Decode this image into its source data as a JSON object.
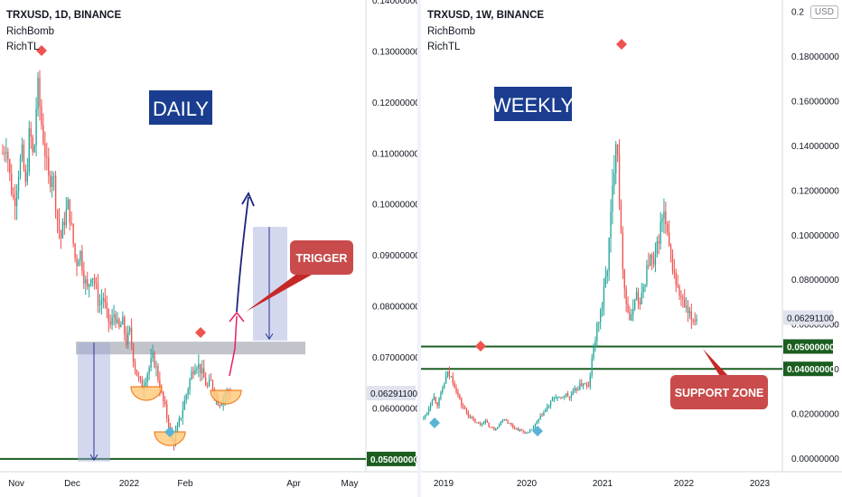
{
  "chart_data": [
    {
      "type": "candlestick",
      "title": "TRXUSD, 1D, BINANCE",
      "indicators": [
        "RichBomb",
        "RichTL"
      ],
      "banner": "DAILY",
      "x_ticks": [
        "Nov",
        "Dec",
        "2022",
        "Feb",
        "Apr",
        "May"
      ],
      "y_ticks": [
        "0.14000000",
        "0.13000000",
        "0.12000000",
        "0.11000000",
        "0.10000000",
        "0.09000000",
        "0.08000000",
        "0.07000000",
        "0.06000000",
        "0.05000000"
      ],
      "ylim": [
        0.0475,
        0.14
      ],
      "current_price": "0.06291100",
      "support_label": "0.05000000",
      "callout": "TRIGGER",
      "resistance_zone": [
        0.0705,
        0.073
      ],
      "support_level": 0.05,
      "close_path": [
        0.11,
        0.112,
        0.104,
        0.1,
        0.106,
        0.11,
        0.103,
        0.115,
        0.108,
        0.124,
        0.116,
        0.11,
        0.104,
        0.107,
        0.098,
        0.093,
        0.097,
        0.1,
        0.094,
        0.088,
        0.091,
        0.086,
        0.083,
        0.087,
        0.084,
        0.08,
        0.082,
        0.078,
        0.076,
        0.079,
        0.075,
        0.077,
        0.073,
        0.075,
        0.069,
        0.066,
        0.064,
        0.066,
        0.068,
        0.07,
        0.067,
        0.063,
        0.06,
        0.057,
        0.053,
        0.055,
        0.058,
        0.061,
        0.064,
        0.067,
        0.069,
        0.068,
        0.066,
        0.064,
        0.065,
        0.063,
        0.061,
        0.062,
        0.063,
        0.0629
      ]
    },
    {
      "type": "candlestick",
      "title": "TRXUSD, 1W, BINANCE",
      "indicators": [
        "RichBomb",
        "RichTL"
      ],
      "banner": "WEEKLY",
      "currency": "USD",
      "x_ticks": [
        "2019",
        "2020",
        "2021",
        "2022",
        "2023"
      ],
      "y_ticks": [
        "0.2",
        "0.18000000",
        "0.16000000",
        "0.14000000",
        "0.12000000",
        "0.10000000",
        "0.08000000",
        "0.06000000",
        "0.04000000",
        "0.02000000",
        "0.00000000"
      ],
      "ylim": [
        -0.006,
        0.205
      ],
      "current_price": "0.06291100",
      "support_labels": [
        "0.05000000",
        "0.04000000"
      ],
      "callout": "SUPPORT ZONE",
      "support_levels": [
        0.05,
        0.04
      ],
      "close_path": [
        0.018,
        0.022,
        0.028,
        0.024,
        0.031,
        0.038,
        0.036,
        0.03,
        0.024,
        0.021,
        0.018,
        0.016,
        0.015,
        0.017,
        0.014,
        0.013,
        0.015,
        0.018,
        0.016,
        0.014,
        0.013,
        0.012,
        0.011,
        0.013,
        0.016,
        0.019,
        0.022,
        0.025,
        0.028,
        0.026,
        0.029,
        0.027,
        0.03,
        0.032,
        0.034,
        0.031,
        0.048,
        0.06,
        0.07,
        0.085,
        0.115,
        0.15,
        0.095,
        0.07,
        0.06,
        0.075,
        0.068,
        0.08,
        0.09,
        0.085,
        0.1,
        0.11,
        0.095,
        0.085,
        0.075,
        0.07,
        0.065,
        0.062,
        0.063
      ]
    }
  ]
}
